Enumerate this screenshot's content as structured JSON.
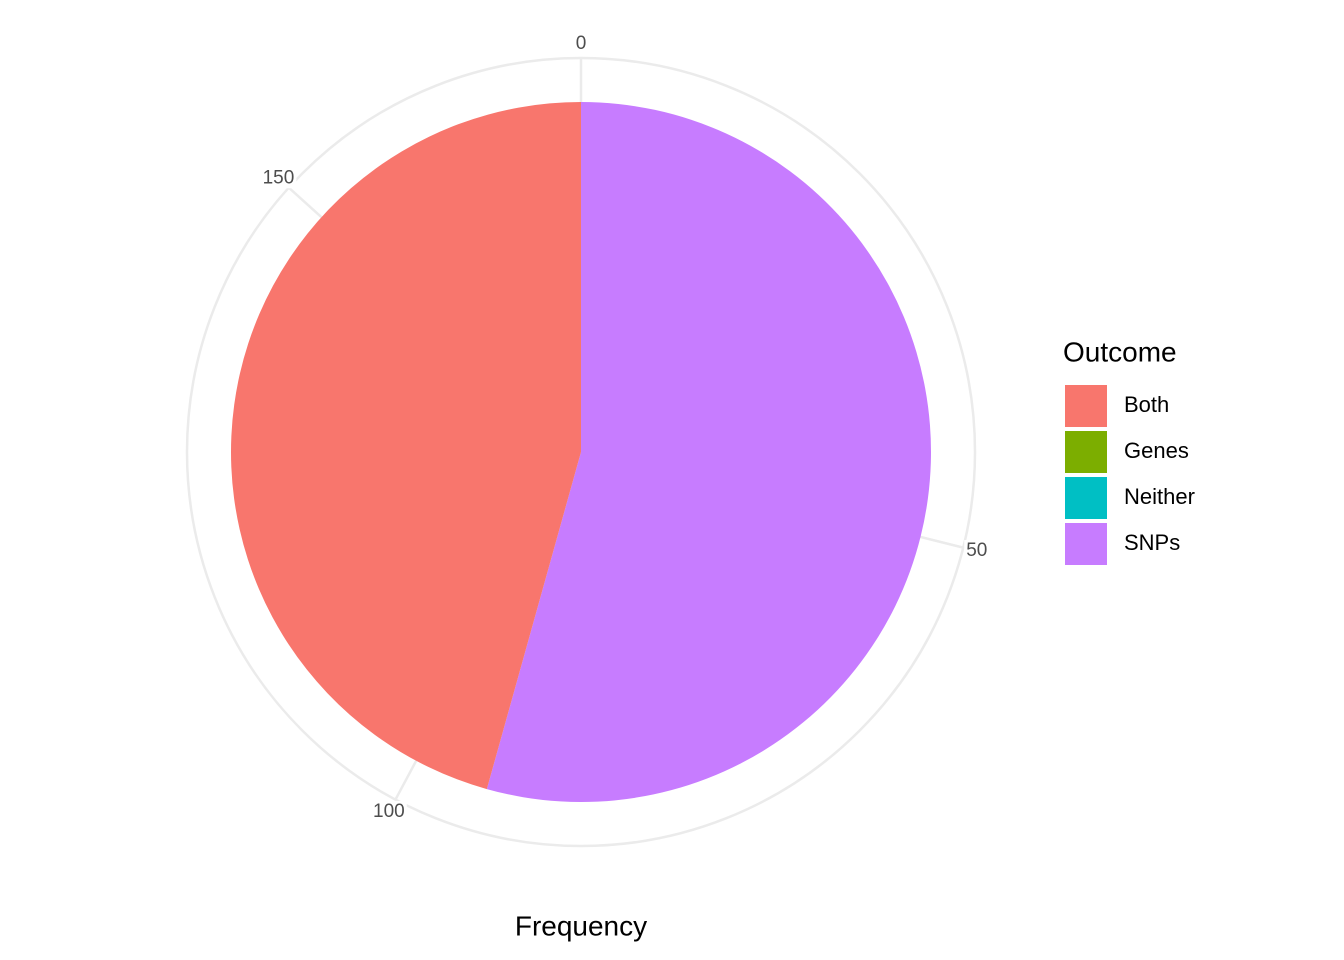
{
  "chart_data": {
    "type": "pie",
    "x_label": "Frequency",
    "legend_title": "Outcome",
    "categories": [
      "Both",
      "Genes",
      "Neither",
      "SNPs"
    ],
    "values": [
      79,
      0,
      0,
      94
    ],
    "colors": [
      "#f8766d",
      "#7cae00",
      "#00bfc4",
      "#c77cff"
    ],
    "thetalim": [
      0,
      173
    ],
    "thetaticks": [
      0,
      50,
      100,
      150
    ],
    "grid": true
  }
}
